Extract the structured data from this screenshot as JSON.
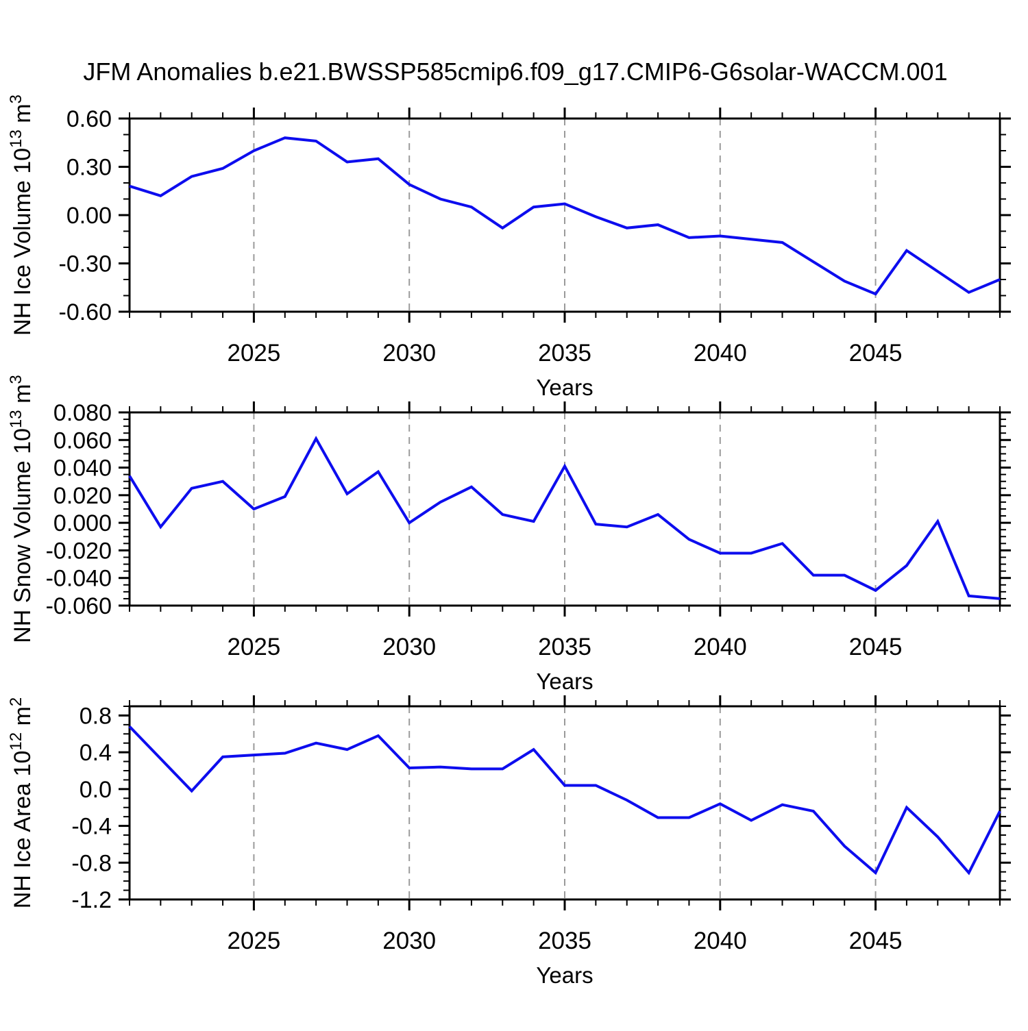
{
  "style": {
    "line_color": "#0d0dee",
    "grid_color": "#9a9a9a",
    "axis_color": "#000000",
    "text_color": "#000000",
    "background": "#ffffff"
  },
  "chart_data": [
    {
      "type": "line",
      "title": "JFM Anomalies b.e21.BWSSP585cmip6.f09_g17.CMIP6-G6solar-WACCM.001",
      "xlabel": "Years",
      "ylabel": "NH Ice Volume 10^13 m^3",
      "ylabel_parts": [
        {
          "text": "NH Ice Volume 10"
        },
        {
          "text": "13",
          "sup": true
        },
        {
          "text": " m"
        },
        {
          "text": "3",
          "sup": true
        }
      ],
      "xlim": [
        2021,
        2049
      ],
      "ylim": [
        -0.6,
        0.6
      ],
      "x_major_ticks": [
        2025,
        2030,
        2035,
        2040,
        2045
      ],
      "x_minor_step": 1,
      "y_minor_step": 0.1,
      "y_ticks": [
        {
          "label": "0.60",
          "value": 0.6
        },
        {
          "label": "0.30",
          "value": 0.3
        },
        {
          "label": "0.00",
          "value": 0.0
        },
        {
          "label": "-0.30",
          "value": -0.3
        },
        {
          "label": "-0.60",
          "value": -0.6
        }
      ],
      "grid": true,
      "legend": "none",
      "x": [
        2021,
        2022,
        2023,
        2024,
        2025,
        2026,
        2027,
        2028,
        2029,
        2030,
        2031,
        2032,
        2033,
        2034,
        2035,
        2036,
        2037,
        2038,
        2039,
        2040,
        2041,
        2042,
        2043,
        2044,
        2045,
        2046,
        2047,
        2048,
        2049
      ],
      "series": [
        {
          "name": "NH Ice Volume anomaly",
          "values": [
            0.18,
            0.12,
            0.24,
            0.29,
            0.4,
            0.48,
            0.46,
            0.33,
            0.35,
            0.19,
            0.1,
            0.05,
            -0.08,
            0.05,
            0.07,
            -0.01,
            -0.08,
            -0.06,
            -0.14,
            -0.13,
            -0.15,
            -0.17,
            -0.29,
            -0.41,
            -0.49,
            -0.22,
            -0.35,
            -0.48,
            -0.4
          ]
        }
      ]
    },
    {
      "type": "line",
      "title": "",
      "xlabel": "Years",
      "ylabel": "NH Snow Volume 10^13 m^3",
      "ylabel_parts": [
        {
          "text": "NH Snow Volume 10"
        },
        {
          "text": "13",
          "sup": true
        },
        {
          "text": " m"
        },
        {
          "text": "3",
          "sup": true
        }
      ],
      "xlim": [
        2021,
        2049
      ],
      "ylim": [
        -0.06,
        0.08
      ],
      "x_major_ticks": [
        2025,
        2030,
        2035,
        2040,
        2045
      ],
      "x_minor_step": 1,
      "y_minor_step": 0.005,
      "y_ticks": [
        {
          "label": "0.080",
          "value": 0.08
        },
        {
          "label": "0.060",
          "value": 0.06
        },
        {
          "label": "0.040",
          "value": 0.04
        },
        {
          "label": "0.020",
          "value": 0.02
        },
        {
          "label": "0.000",
          "value": 0.0
        },
        {
          "label": "-0.020",
          "value": -0.02
        },
        {
          "label": "-0.040",
          "value": -0.04
        },
        {
          "label": "-0.060",
          "value": -0.06
        }
      ],
      "grid": true,
      "legend": "none",
      "x": [
        2021,
        2022,
        2023,
        2024,
        2025,
        2026,
        2027,
        2028,
        2029,
        2030,
        2031,
        2032,
        2033,
        2034,
        2035,
        2036,
        2037,
        2038,
        2039,
        2040,
        2041,
        2042,
        2043,
        2044,
        2045,
        2046,
        2047,
        2048,
        2049
      ],
      "series": [
        {
          "name": "NH Snow Volume anomaly",
          "values": [
            0.034,
            -0.003,
            0.025,
            0.03,
            0.01,
            0.019,
            0.061,
            0.021,
            0.037,
            0.0,
            0.015,
            0.026,
            0.006,
            0.001,
            0.041,
            -0.001,
            -0.003,
            0.006,
            -0.012,
            -0.022,
            -0.022,
            -0.015,
            -0.038,
            -0.038,
            -0.049,
            -0.031,
            0.001,
            -0.053,
            -0.055
          ]
        }
      ]
    },
    {
      "type": "line",
      "title": "",
      "xlabel": "Years",
      "ylabel": "NH Ice Area 10^12 m^2",
      "ylabel_parts": [
        {
          "text": "NH Ice Area 10"
        },
        {
          "text": "12",
          "sup": true
        },
        {
          "text": " m"
        },
        {
          "text": "2",
          "sup": true
        }
      ],
      "xlim": [
        2021,
        2049
      ],
      "ylim": [
        -1.2,
        0.9
      ],
      "x_major_ticks": [
        2025,
        2030,
        2035,
        2040,
        2045
      ],
      "x_minor_step": 1,
      "y_minor_step": 0.1,
      "y_ticks": [
        {
          "label": "0.8",
          "value": 0.8
        },
        {
          "label": "0.4",
          "value": 0.4
        },
        {
          "label": "0.0",
          "value": 0.0
        },
        {
          "label": "-0.4",
          "value": -0.4
        },
        {
          "label": "-0.8",
          "value": -0.8
        },
        {
          "label": "-1.2",
          "value": -1.2
        }
      ],
      "grid": true,
      "legend": "none",
      "x": [
        2021,
        2022,
        2023,
        2024,
        2025,
        2026,
        2027,
        2028,
        2029,
        2030,
        2031,
        2032,
        2033,
        2034,
        2035,
        2036,
        2037,
        2038,
        2039,
        2040,
        2041,
        2042,
        2043,
        2044,
        2045,
        2046,
        2047,
        2048,
        2049
      ],
      "series": [
        {
          "name": "NH Ice Area anomaly",
          "values": [
            0.68,
            0.33,
            -0.02,
            0.35,
            0.37,
            0.39,
            0.5,
            0.43,
            0.58,
            0.23,
            0.24,
            0.22,
            0.22,
            0.43,
            0.04,
            0.04,
            -0.12,
            -0.31,
            -0.31,
            -0.16,
            -0.34,
            -0.17,
            -0.24,
            -0.62,
            -0.91,
            -0.2,
            -0.52,
            -0.91,
            -0.24
          ]
        }
      ]
    }
  ]
}
